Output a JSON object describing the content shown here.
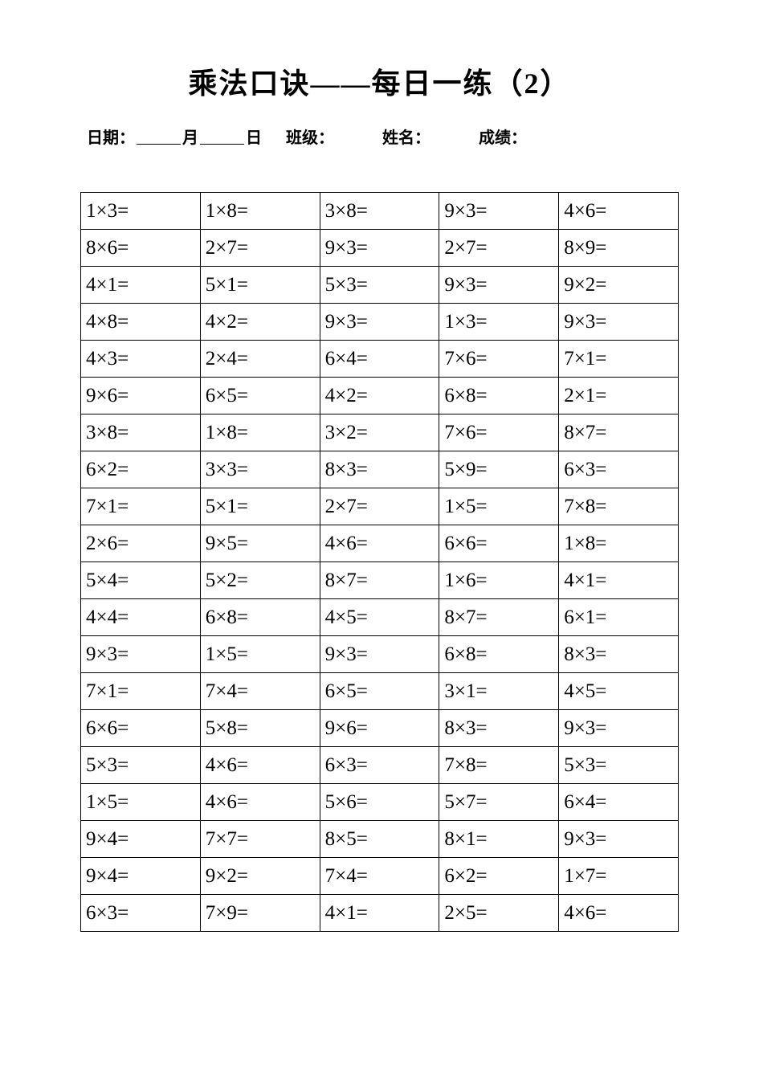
{
  "title": "乘法口诀——每日一练（2）",
  "info": {
    "date_label": "日期：",
    "month_label": "月",
    "day_label": "日",
    "class_label": "班级：",
    "name_label": "姓名：",
    "score_label": "成绩："
  },
  "table": {
    "columns": 5,
    "cell_font_size": 25,
    "border_color": "#000000",
    "rows": [
      [
        "1×3=",
        "1×8=",
        "3×8=",
        "9×3=",
        "4×6="
      ],
      [
        "8×6=",
        "2×7=",
        "9×3=",
        "2×7=",
        "8×9="
      ],
      [
        "4×1=",
        "5×1=",
        "5×3=",
        "9×3=",
        "9×2="
      ],
      [
        "4×8=",
        "4×2=",
        "9×3=",
        "1×3=",
        "9×3="
      ],
      [
        "4×3=",
        "2×4=",
        "6×4=",
        "7×6=",
        "7×1="
      ],
      [
        "9×6=",
        "6×5=",
        "4×2=",
        "6×8=",
        "2×1="
      ],
      [
        "3×8=",
        "1×8=",
        "3×2=",
        "7×6=",
        "8×7="
      ],
      [
        "6×2=",
        "3×3=",
        "8×3=",
        "5×9=",
        "6×3="
      ],
      [
        "7×1=",
        "5×1=",
        "2×7=",
        "1×5=",
        "7×8="
      ],
      [
        "2×6=",
        "9×5=",
        "4×6=",
        "6×6=",
        "1×8="
      ],
      [
        "5×4=",
        "5×2=",
        "8×7=",
        "1×6=",
        "4×1="
      ],
      [
        "4×4=",
        "6×8=",
        "4×5=",
        "8×7=",
        "6×1="
      ],
      [
        "9×3=",
        "1×5=",
        "9×3=",
        "6×8=",
        "8×3="
      ],
      [
        "7×1=",
        "7×4=",
        "6×5=",
        "3×1=",
        "4×5="
      ],
      [
        "6×6=",
        "5×8=",
        "9×6=",
        "8×3=",
        "9×3="
      ],
      [
        "5×3=",
        "4×6=",
        "6×3=",
        "7×8=",
        "5×3="
      ],
      [
        "1×5=",
        "4×6=",
        "5×6=",
        "5×7=",
        "6×4="
      ],
      [
        "9×4=",
        "7×7=",
        "8×5=",
        "8×1=",
        "9×3="
      ],
      [
        "9×4=",
        "9×2=",
        "7×4=",
        "6×2=",
        "1×7="
      ],
      [
        "6×3=",
        "7×9=",
        "4×1=",
        "2×5=",
        "4×6="
      ]
    ]
  }
}
